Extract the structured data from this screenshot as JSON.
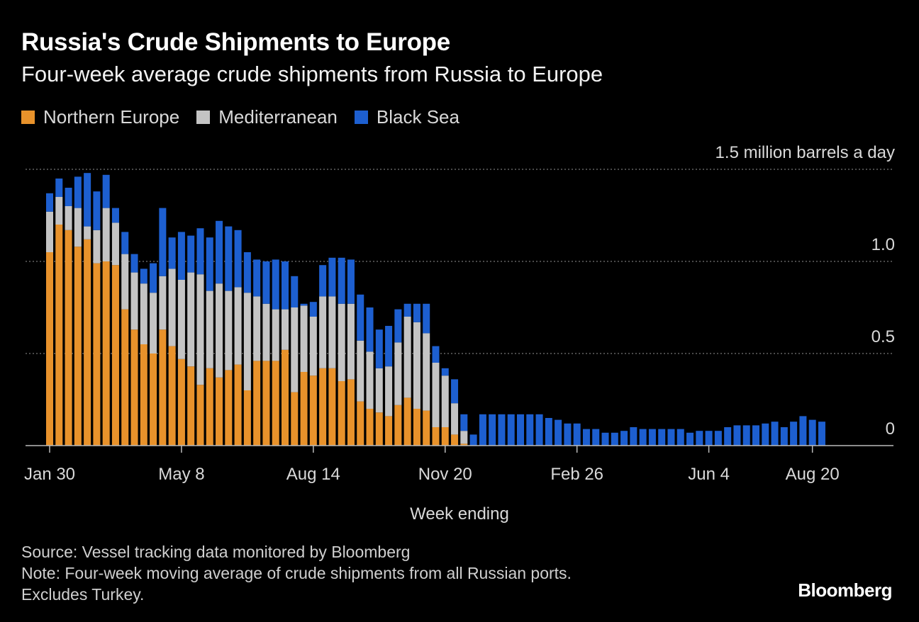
{
  "header": {
    "title": "Russia's Crude Shipments to Europe",
    "subtitle": "Four-week average crude shipments from Russia to Europe"
  },
  "legend": [
    {
      "label": "Northern Europe",
      "color": "#e8922b"
    },
    {
      "label": "Mediterranean",
      "color": "#c4c4c4"
    },
    {
      "label": "Black Sea",
      "color": "#1d5fd0"
    }
  ],
  "footer": {
    "source": "Source: Vessel tracking data monitored by Bloomberg",
    "note1": "Note: Four-week moving average of crude shipments from all Russian ports.",
    "note2": "Excludes Turkey.",
    "brand": "Bloomberg"
  },
  "chart_data": {
    "type": "bar",
    "stacked": true,
    "title": "Russia's Crude Shipments to Europe",
    "xlabel": "Week ending",
    "ylabel": "million barrels a day",
    "ylim": [
      0,
      1.5
    ],
    "y_ticks": [
      {
        "value": 0,
        "label": "0"
      },
      {
        "value": 0.5,
        "label": "0.5"
      },
      {
        "value": 1.0,
        "label": "1.0"
      },
      {
        "value": 1.5,
        "label": "1.5 million barrels a day"
      }
    ],
    "x_ticks": [
      {
        "index": 0,
        "label": "Jan 30"
      },
      {
        "index": 14,
        "label": "May 8"
      },
      {
        "index": 28,
        "label": "Aug 14"
      },
      {
        "index": 42,
        "label": "Nov 20"
      },
      {
        "index": 56,
        "label": "Feb 26"
      },
      {
        "index": 70,
        "label": "Jun 4"
      },
      {
        "index": 81,
        "label": "Aug 20"
      }
    ],
    "series": [
      {
        "name": "Northern Europe",
        "color": "#e8922b",
        "values": [
          1.05,
          1.2,
          1.17,
          1.08,
          1.12,
          0.99,
          1.0,
          0.98,
          0.74,
          0.63,
          0.55,
          0.5,
          0.63,
          0.54,
          0.47,
          0.43,
          0.33,
          0.42,
          0.37,
          0.41,
          0.44,
          0.3,
          0.46,
          0.46,
          0.46,
          0.52,
          0.29,
          0.4,
          0.38,
          0.42,
          0.42,
          0.35,
          0.36,
          0.24,
          0.2,
          0.18,
          0.16,
          0.22,
          0.26,
          0.2,
          0.19,
          0.1,
          0.1,
          0.06,
          0.01,
          0,
          0,
          0,
          0,
          0,
          0,
          0,
          0,
          0,
          0,
          0,
          0,
          0,
          0,
          0,
          0,
          0,
          0,
          0,
          0,
          0,
          0,
          0,
          0,
          0,
          0,
          0,
          0,
          0,
          0,
          0,
          0,
          0,
          0,
          0,
          0,
          0,
          0
        ]
      },
      {
        "name": "Mediterranean",
        "color": "#c4c4c4",
        "values": [
          0.22,
          0.15,
          0.13,
          0.21,
          0.07,
          0.18,
          0.29,
          0.23,
          0.3,
          0.31,
          0.33,
          0.33,
          0.29,
          0.42,
          0.43,
          0.51,
          0.6,
          0.42,
          0.51,
          0.43,
          0.42,
          0.53,
          0.35,
          0.31,
          0.28,
          0.22,
          0.46,
          0.36,
          0.32,
          0.39,
          0.39,
          0.42,
          0.41,
          0.33,
          0.31,
          0.24,
          0.27,
          0.34,
          0.44,
          0.47,
          0.42,
          0.35,
          0.28,
          0.17,
          0.07,
          0,
          0,
          0,
          0,
          0,
          0,
          0,
          0,
          0,
          0,
          0,
          0,
          0,
          0,
          0,
          0,
          0,
          0,
          0,
          0,
          0,
          0,
          0,
          0,
          0,
          0,
          0,
          0,
          0,
          0,
          0,
          0,
          0,
          0,
          0,
          0,
          0,
          0
        ]
      },
      {
        "name": "Black Sea",
        "color": "#1d5fd0",
        "values": [
          0.1,
          0.1,
          0.1,
          0.17,
          0.29,
          0.21,
          0.18,
          0.08,
          0.12,
          0.1,
          0.08,
          0.16,
          0.37,
          0.17,
          0.26,
          0.2,
          0.25,
          0.29,
          0.34,
          0.35,
          0.31,
          0.22,
          0.2,
          0.23,
          0.27,
          0.26,
          0.17,
          0.01,
          0.08,
          0.17,
          0.21,
          0.25,
          0.24,
          0.25,
          0.24,
          0.21,
          0.22,
          0.18,
          0.07,
          0.1,
          0.16,
          0.09,
          0.04,
          0.13,
          0.09,
          0.06,
          0.17,
          0.17,
          0.17,
          0.17,
          0.17,
          0.17,
          0.17,
          0.15,
          0.14,
          0.12,
          0.12,
          0.09,
          0.09,
          0.07,
          0.07,
          0.08,
          0.1,
          0.09,
          0.09,
          0.09,
          0.09,
          0.09,
          0.07,
          0.08,
          0.08,
          0.08,
          0.1,
          0.11,
          0.11,
          0.11,
          0.12,
          0.13,
          0.1,
          0.13,
          0.16,
          0.14,
          0.13
        ]
      }
    ]
  }
}
